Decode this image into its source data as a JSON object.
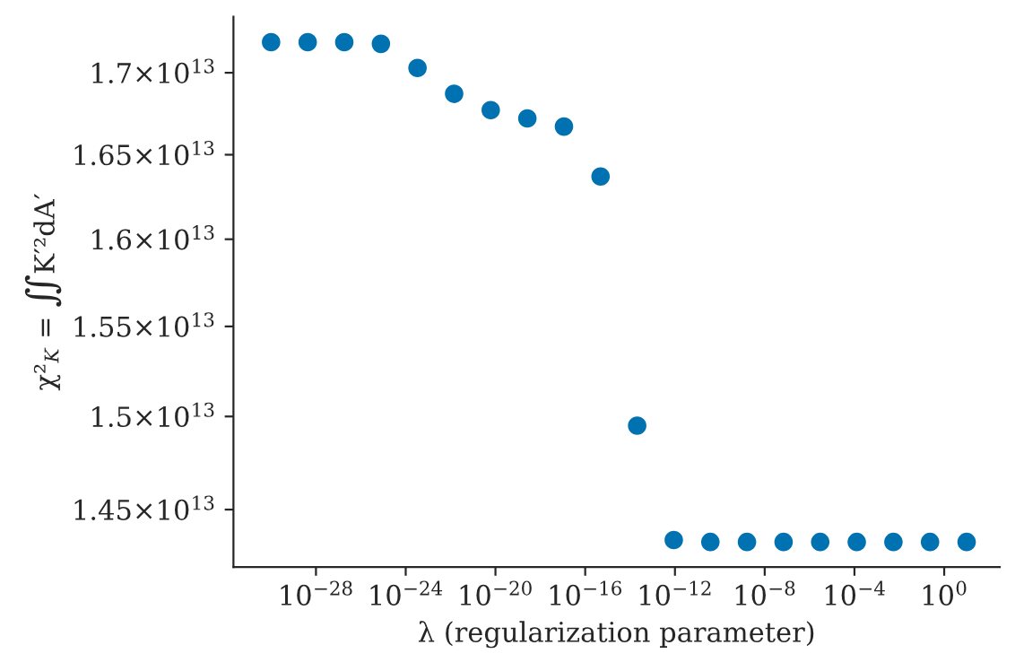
{
  "chart_data": {
    "type": "scatter",
    "xlabel": "λ (regularization parameter)",
    "ylabel": "χ²$_{K}$ = ∬K′²dA′",
    "x": [
      1e-30,
      4.28e-29,
      1.83e-27,
      7.85e-26,
      3.36e-24,
      1.44e-22,
      6.16e-21,
      2.64e-19,
      1.13e-17,
      4.83e-16,
      2.07e-14,
      8.86e-13,
      3.79e-11,
      1.62e-09,
      6.95e-08,
      2.98e-06,
      0.000127,
      0.00546,
      0.234,
      10
    ],
    "series": [
      {
        "color": "#0072b2",
        "values": [
          17190000000000.0,
          17190000000000.0,
          17190000000000.0,
          17180000000000.0,
          17030000000000.0,
          16870000000000.0,
          16770000000000.0,
          16720000000000.0,
          16670000000000.0,
          16370000000000.0,
          14950000000000.0,
          14340000000000.0,
          14330000000000.0,
          14330000000000.0,
          14330000000000.0,
          14330000000000.0,
          14330000000000.0,
          14330000000000.0,
          14330000000000.0,
          14330000000000.0
        ]
      }
    ],
    "log": "xy",
    "marker": "circle",
    "grid": false,
    "legend": false,
    "xlim": [
      2.1e-32,
      300
    ],
    "ylim": [
      14200000000000.0,
      17350000000000.0
    ],
    "xticks": [
      {
        "value": 1e-28,
        "label": "10$^{−28}$"
      },
      {
        "value": 1e-24,
        "label": "10$^{−24}$"
      },
      {
        "value": 1e-20,
        "label": "10$^{−20}$"
      },
      {
        "value": 1e-16,
        "label": "10$^{−16}$"
      },
      {
        "value": 1e-12,
        "label": "10$^{−12}$"
      },
      {
        "value": 1e-08,
        "label": "10$^{−8}$"
      },
      {
        "value": 0.0001,
        "label": "10$^{−4}$"
      },
      {
        "value": 1,
        "label": "10$^{0}$"
      }
    ],
    "yticks": [
      {
        "value": 14500000000000.0,
        "label": "1.45×10$^{13}$"
      },
      {
        "value": 15000000000000.0,
        "label": "1.5×10$^{13}$"
      },
      {
        "value": 15500000000000.0,
        "label": "1.55×10$^{13}$"
      },
      {
        "value": 16000000000000.0,
        "label": "1.6×10$^{13}$"
      },
      {
        "value": 16500000000000.0,
        "label": "1.65×10$^{13}$"
      },
      {
        "value": 17000000000000.0,
        "label": "1.7×10$^{13}$"
      }
    ]
  }
}
